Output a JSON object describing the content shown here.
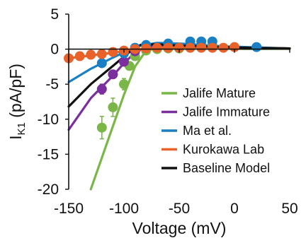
{
  "chart_data": {
    "type": "line",
    "title": "",
    "xlabel": "Voltage (mV)",
    "ylabel": {
      "main": "I",
      "sub": "K1",
      "rest": " (pA/pF)"
    },
    "xlim": [
      -150,
      50
    ],
    "ylim": [
      -20,
      5
    ],
    "xticks": [
      "-150",
      "-100",
      "-50",
      "0",
      "50"
    ],
    "yticks": [
      "5",
      "0",
      "-5",
      "-10",
      "-15",
      "-20"
    ],
    "xtick_values": [
      -150,
      -100,
      -50,
      0,
      50
    ],
    "ytick_values": [
      5,
      0,
      -5,
      -10,
      -15,
      -20
    ],
    "grid": false,
    "legend_position": "bottom-right",
    "series": [
      {
        "name": "Jalife Mature",
        "color": "#7ab648",
        "line": {
          "x": [
            -130,
            -110,
            -100,
            -90,
            -80,
            -70,
            -50,
            -30,
            -10,
            10,
            30,
            50
          ],
          "y": [
            -20,
            -11.0,
            -6.5,
            -2.5,
            -0.2,
            0.1,
            0.2,
            0.2,
            0.1,
            0.05,
            0.05,
            0.05
          ]
        },
        "points": [
          {
            "x": -120,
            "y": -11.2,
            "err": 1.6
          },
          {
            "x": -110,
            "y": -8.3,
            "err": 1.3
          },
          {
            "x": -100,
            "y": -5.0,
            "err": 0.8
          },
          {
            "x": -95,
            "y": -2.4,
            "err": 0.5
          },
          {
            "x": -90,
            "y": -1.0,
            "err": 0.3
          },
          {
            "x": -80,
            "y": -0.2,
            "err": 0.2
          },
          {
            "x": -70,
            "y": 0.0,
            "err": 0
          },
          {
            "x": -60,
            "y": 0.1,
            "err": 0
          },
          {
            "x": -50,
            "y": 0.1,
            "err": 0
          },
          {
            "x": -40,
            "y": 0.2,
            "err": 0
          },
          {
            "x": -30,
            "y": 0.3,
            "err": 0
          },
          {
            "x": -20,
            "y": 0.5,
            "err": 0
          }
        ]
      },
      {
        "name": "Jalife Immature",
        "color": "#7b2f9e",
        "line": {
          "x": [
            -150,
            -130,
            -110,
            -100,
            -90,
            -80,
            -60,
            -40,
            -20,
            0,
            20,
            50
          ],
          "y": [
            -11.5,
            -7.0,
            -3.8,
            -2.0,
            -0.5,
            0.3,
            0.6,
            0.5,
            0.4,
            0.3,
            0.2,
            0.1
          ]
        },
        "points": [
          {
            "x": -120,
            "y": -5.7,
            "err": 0.7
          },
          {
            "x": -110,
            "y": -3.6,
            "err": 0.5
          },
          {
            "x": -100,
            "y": -1.8,
            "err": 0.3
          },
          {
            "x": -90,
            "y": -0.3,
            "err": 0
          }
        ]
      },
      {
        "name": "Ma et al.",
        "color": "#1b7fc4",
        "line": {
          "x": [
            -150,
            -130,
            -110,
            -95,
            -85,
            -70,
            -50,
            -30,
            -10,
            10,
            30,
            50
          ],
          "y": [
            -4.7,
            -2.8,
            -1.2,
            -0.1,
            0.5,
            0.9,
            0.8,
            0.6,
            0.4,
            0.3,
            0.2,
            0.1
          ]
        },
        "points": [
          {
            "x": -120,
            "y": -2.0,
            "err": 0
          },
          {
            "x": -100,
            "y": -0.6,
            "err": 0
          },
          {
            "x": -90,
            "y": 0.2,
            "err": 0
          },
          {
            "x": -80,
            "y": 0.6,
            "err": 0
          },
          {
            "x": -60,
            "y": 0.8,
            "err": 0
          },
          {
            "x": -40,
            "y": 1.1,
            "err": 0
          },
          {
            "x": -30,
            "y": 1.1,
            "err": 0
          },
          {
            "x": -20,
            "y": 1.1,
            "err": 0
          },
          {
            "x": 20,
            "y": 0.3,
            "err": 0
          }
        ]
      },
      {
        "name": "Kurokawa Lab",
        "color": "#e8622a",
        "line": {
          "x": [
            -150,
            -130,
            -110,
            -90,
            -70,
            -50,
            -30,
            -10,
            10,
            30,
            50
          ],
          "y": [
            -1.3,
            -0.9,
            -0.5,
            -0.1,
            0.2,
            0.3,
            0.3,
            0.3,
            0.2,
            0.15,
            0.1
          ]
        },
        "points": [
          {
            "x": -150,
            "y": -1.3,
            "err": 0
          },
          {
            "x": -140,
            "y": -1.0,
            "err": 0
          },
          {
            "x": -130,
            "y": -0.8,
            "err": 0
          },
          {
            "x": -120,
            "y": -0.7,
            "err": 0
          },
          {
            "x": -110,
            "y": -0.4,
            "err": 0
          },
          {
            "x": -100,
            "y": -0.2,
            "err": 0
          },
          {
            "x": -90,
            "y": 0.0,
            "err": 0
          },
          {
            "x": -80,
            "y": 0.1,
            "err": 0
          },
          {
            "x": -70,
            "y": 0.2,
            "err": 0
          },
          {
            "x": -60,
            "y": 0.2,
            "err": 0
          },
          {
            "x": -50,
            "y": 0.2,
            "err": 0
          },
          {
            "x": -40,
            "y": 0.2,
            "err": 0
          },
          {
            "x": -30,
            "y": 0.2,
            "err": 0
          },
          {
            "x": -20,
            "y": 0.2,
            "err": 0
          },
          {
            "x": -10,
            "y": 0.2,
            "err": 0
          },
          {
            "x": 0,
            "y": 0.3,
            "err": 0
          }
        ]
      },
      {
        "name": "Baseline Model",
        "color": "#111111",
        "line": {
          "x": [
            -150,
            -130,
            -110,
            -95,
            -85,
            -70,
            -50,
            -30,
            -10,
            10,
            30,
            50
          ],
          "y": [
            -8.2,
            -5.0,
            -2.4,
            -0.4,
            0.6,
            0.7,
            0.5,
            0.4,
            0.3,
            0.2,
            0.15,
            0.1
          ]
        },
        "points": []
      }
    ]
  }
}
